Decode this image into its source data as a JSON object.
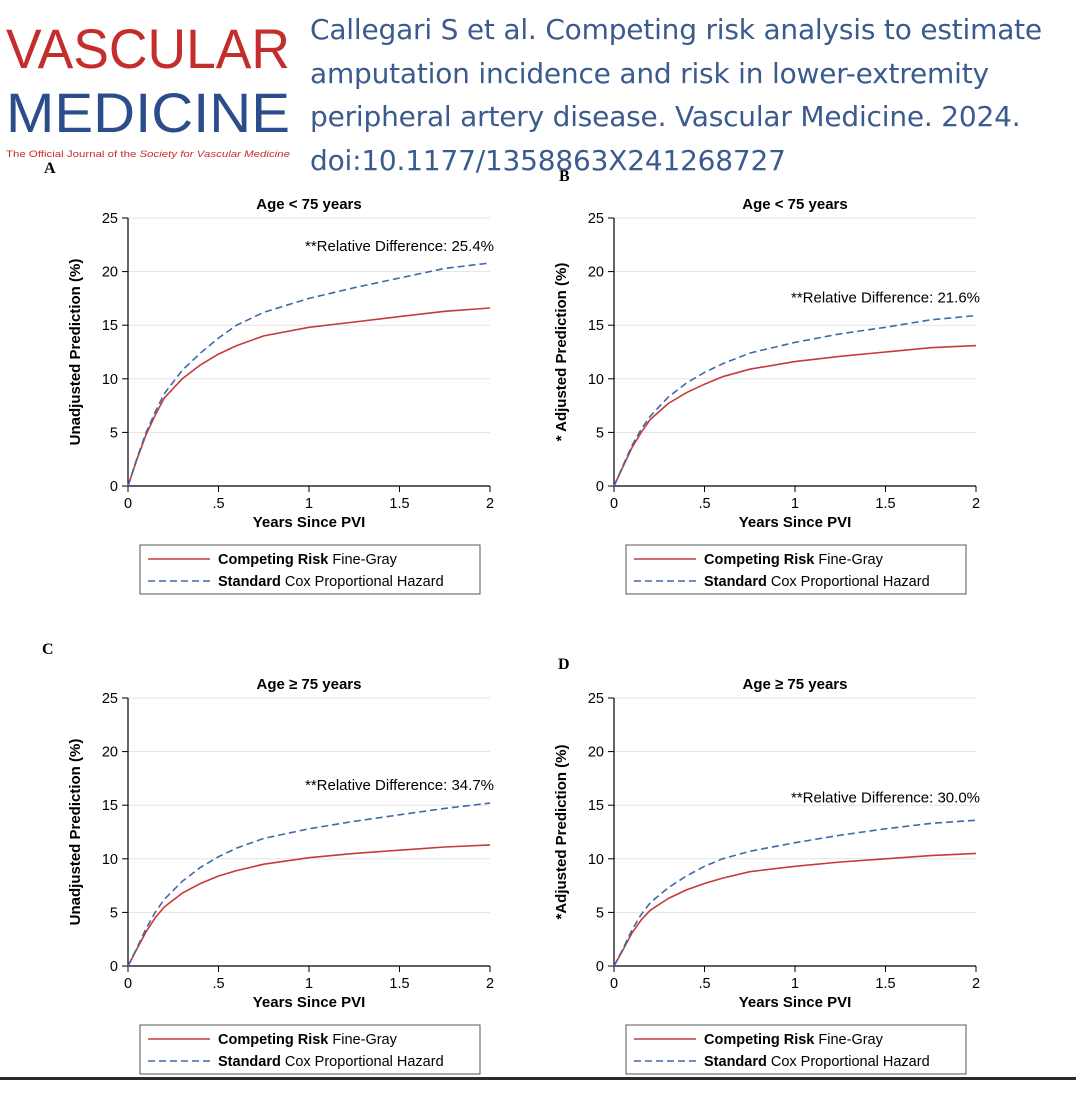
{
  "logo": {
    "line1": "VASCULAR",
    "line2": "MEDICINE",
    "tagline_prefix": "The Official Journal of the ",
    "tagline_italic": "Society for Vascular Medicine",
    "color_line1": "#c52d2d",
    "color_line2": "#2c4d8c"
  },
  "citation": [
    "Callegari S et al. Competing risk analysis to estimate",
    "amputation incidence and risk in lower-extremity",
    "peripheral artery disease. Vascular Medicine. 2024.",
    "doi:10.1177/1358863X241268727"
  ],
  "colors": {
    "competing": "#c83a3a",
    "standard": "#3d6aa8",
    "grid": "#e3e3e3"
  },
  "chart_data": [
    {
      "type": "line",
      "panel": "A",
      "title": "Age < 75 years",
      "xlabel": "Years Since PVI",
      "ylabel": "Unadjusted Prediction (%)",
      "xlim": [
        0,
        2
      ],
      "ylim": [
        0,
        25
      ],
      "xticks": [
        0,
        0.5,
        1,
        1.5,
        2
      ],
      "xtick_labels": [
        "0",
        ".5",
        "1",
        "1.5",
        "2"
      ],
      "yticks": [
        0,
        5,
        10,
        15,
        20,
        25
      ],
      "grid": "horizontal",
      "annotation": {
        "text": "**Relative Difference: 25.4%",
        "x": 2,
        "y": 22.4
      },
      "legend": {
        "position": "bottom"
      },
      "series": [
        {
          "name_bold": "Competing Risk",
          "name_rest": "Fine-Gray",
          "style": "solid",
          "x": [
            0,
            0.05,
            0.1,
            0.15,
            0.2,
            0.3,
            0.4,
            0.5,
            0.6,
            0.75,
            1,
            1.25,
            1.5,
            1.75,
            2
          ],
          "y": [
            0,
            2.5,
            4.8,
            6.6,
            8.2,
            10.0,
            11.3,
            12.3,
            13.1,
            14.0,
            14.8,
            15.3,
            15.8,
            16.3,
            16.6
          ]
        },
        {
          "name_bold": "Standard",
          "name_rest": "Cox Proportional Hazard",
          "style": "dashed",
          "x": [
            0,
            0.05,
            0.1,
            0.15,
            0.2,
            0.3,
            0.4,
            0.5,
            0.6,
            0.75,
            1,
            1.25,
            1.5,
            1.75,
            2
          ],
          "y": [
            0,
            2.6,
            5.0,
            6.9,
            8.6,
            10.8,
            12.4,
            13.8,
            15.0,
            16.2,
            17.5,
            18.5,
            19.4,
            20.3,
            20.8
          ]
        }
      ]
    },
    {
      "type": "line",
      "panel": "B",
      "title": "Age < 75 years",
      "xlabel": "Years Since PVI",
      "ylabel": "* Adjusted Prediction (%)",
      "xlim": [
        0,
        2
      ],
      "ylim": [
        0,
        25
      ],
      "xticks": [
        0,
        0.5,
        1,
        1.5,
        2
      ],
      "xtick_labels": [
        "0",
        ".5",
        "1",
        "1.5",
        "2"
      ],
      "yticks": [
        0,
        5,
        10,
        15,
        20,
        25
      ],
      "grid": "horizontal",
      "annotation": {
        "text": "**Relative Difference: 21.6%",
        "x": 2,
        "y": 17.6
      },
      "legend": {
        "position": "bottom"
      },
      "series": [
        {
          "name_bold": "Competing Risk",
          "name_rest": "Fine-Gray",
          "style": "solid",
          "x": [
            0,
            0.05,
            0.1,
            0.15,
            0.2,
            0.3,
            0.4,
            0.5,
            0.6,
            0.75,
            1,
            1.25,
            1.5,
            1.75,
            2
          ],
          "y": [
            0,
            1.8,
            3.6,
            5.0,
            6.2,
            7.7,
            8.7,
            9.5,
            10.2,
            10.9,
            11.6,
            12.1,
            12.5,
            12.9,
            13.1
          ]
        },
        {
          "name_bold": "Standard",
          "name_rest": "Cox Proportional Hazard",
          "style": "dashed",
          "x": [
            0,
            0.05,
            0.1,
            0.15,
            0.2,
            0.3,
            0.4,
            0.5,
            0.6,
            0.75,
            1,
            1.25,
            1.5,
            1.75,
            2
          ],
          "y": [
            0,
            1.9,
            3.8,
            5.3,
            6.5,
            8.3,
            9.6,
            10.6,
            11.4,
            12.4,
            13.4,
            14.2,
            14.8,
            15.5,
            15.9
          ]
        }
      ]
    },
    {
      "type": "line",
      "panel": "C",
      "title": "Age ≥ 75 years",
      "xlabel": "Years Since PVI",
      "ylabel": "Unadjusted Prediction (%)",
      "xlim": [
        0,
        2
      ],
      "ylim": [
        0,
        25
      ],
      "xticks": [
        0,
        0.5,
        1,
        1.5,
        2
      ],
      "xtick_labels": [
        "0",
        ".5",
        "1",
        "1.5",
        "2"
      ],
      "yticks": [
        0,
        5,
        10,
        15,
        20,
        25
      ],
      "grid": "horizontal",
      "annotation": {
        "text": "**Relative Difference: 34.7%",
        "x": 2,
        "y": 16.9
      },
      "legend": {
        "position": "bottom"
      },
      "series": [
        {
          "name_bold": "Competing Risk",
          "name_rest": "Fine-Gray",
          "style": "solid",
          "x": [
            0,
            0.05,
            0.1,
            0.15,
            0.2,
            0.3,
            0.4,
            0.5,
            0.6,
            0.75,
            1,
            1.25,
            1.5,
            1.75,
            2
          ],
          "y": [
            0,
            1.6,
            3.2,
            4.5,
            5.5,
            6.8,
            7.7,
            8.4,
            8.9,
            9.5,
            10.1,
            10.5,
            10.8,
            11.1,
            11.3
          ]
        },
        {
          "name_bold": "Standard",
          "name_rest": "Cox Proportional Hazard",
          "style": "dashed",
          "x": [
            0,
            0.05,
            0.1,
            0.15,
            0.2,
            0.3,
            0.4,
            0.5,
            0.6,
            0.75,
            1,
            1.25,
            1.5,
            1.75,
            2
          ],
          "y": [
            0,
            1.7,
            3.5,
            5.0,
            6.2,
            7.9,
            9.2,
            10.2,
            11.0,
            11.9,
            12.8,
            13.5,
            14.1,
            14.7,
            15.2
          ]
        }
      ]
    },
    {
      "type": "line",
      "panel": "D",
      "title": "Age ≥ 75 years",
      "xlabel": "Years Since PVI",
      "ylabel": "*Adjusted Prediction (%)",
      "xlim": [
        0,
        2
      ],
      "ylim": [
        0,
        25
      ],
      "xticks": [
        0,
        0.5,
        1,
        1.5,
        2
      ],
      "xtick_labels": [
        "0",
        ".5",
        "1",
        "1.5",
        "2"
      ],
      "yticks": [
        0,
        5,
        10,
        15,
        20,
        25
      ],
      "grid": "horizontal",
      "annotation": {
        "text": "**Relative Difference: 30.0%",
        "x": 2,
        "y": 15.7
      },
      "legend": {
        "position": "bottom"
      },
      "series": [
        {
          "name_bold": "Competing Risk",
          "name_rest": "Fine-Gray",
          "style": "solid",
          "x": [
            0,
            0.05,
            0.1,
            0.15,
            0.2,
            0.3,
            0.4,
            0.5,
            0.6,
            0.75,
            1,
            1.25,
            1.5,
            1.75,
            2
          ],
          "y": [
            0,
            1.5,
            3.1,
            4.3,
            5.2,
            6.3,
            7.1,
            7.7,
            8.2,
            8.8,
            9.3,
            9.7,
            10.0,
            10.3,
            10.5
          ]
        },
        {
          "name_bold": "Standard",
          "name_rest": "Cox Proportional Hazard",
          "style": "dashed",
          "x": [
            0,
            0.05,
            0.1,
            0.15,
            0.2,
            0.3,
            0.4,
            0.5,
            0.6,
            0.75,
            1,
            1.25,
            1.5,
            1.75,
            2
          ],
          "y": [
            0,
            1.6,
            3.4,
            4.8,
            5.9,
            7.3,
            8.4,
            9.3,
            10.0,
            10.7,
            11.5,
            12.2,
            12.8,
            13.3,
            13.6
          ]
        }
      ]
    }
  ]
}
